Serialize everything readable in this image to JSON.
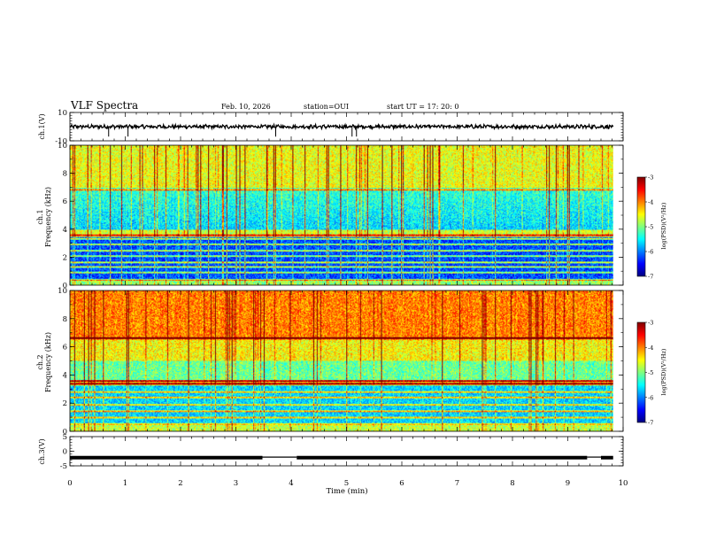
{
  "header": {
    "title": "VLF Spectra",
    "date": "Feb. 10, 2026",
    "station": "station=OUI",
    "start_ut": "start  UT =   17: 20: 0"
  },
  "chart_data": [
    {
      "type": "line",
      "name": "ch1-waveform",
      "ylabel": "ch.1(V)",
      "ylim": [
        -10,
        10
      ],
      "yticks": [
        "10",
        "-10"
      ],
      "xlim": [
        0,
        10
      ],
      "baseline": 0,
      "spikes_min": [
        0.7,
        1.05,
        3.72,
        5.1,
        5.18
      ]
    },
    {
      "type": "heatmap",
      "name": "ch1-spectrogram",
      "ylabel": "Frequency (kHz)",
      "channel_label": "ch.1",
      "ylim": [
        0,
        10
      ],
      "yticks": [
        "0",
        "2",
        "4",
        "6",
        "8",
        "10"
      ],
      "xlim": [
        0,
        10
      ],
      "colorbar": {
        "label": "log(PSD)(V²/Hz)",
        "ticks": [
          "-3",
          "-4",
          "-5",
          "-6",
          "-7"
        ],
        "range": [
          -7,
          -3
        ]
      }
    },
    {
      "type": "heatmap",
      "name": "ch2-spectrogram",
      "ylabel": "Frequency (kHz)",
      "channel_label": "ch.2",
      "ylim": [
        0,
        10
      ],
      "yticks": [
        "0",
        "2",
        "4",
        "6",
        "8",
        "10"
      ],
      "xlim": [
        0,
        10
      ],
      "colorbar": {
        "label": "log(PSD)(V²/Hz)",
        "ticks": [
          "-3",
          "-4",
          "-5",
          "-6",
          "-7"
        ],
        "range": [
          -7,
          -3
        ]
      }
    },
    {
      "type": "line",
      "name": "ch3-waveform",
      "ylabel": "ch.3(V)",
      "ylim": [
        -5,
        5
      ],
      "yticks": [
        "5",
        "0",
        "-5"
      ],
      "xlim": [
        0,
        10
      ],
      "segments": [
        {
          "x0": 0,
          "x1": 3.48,
          "y": -2.2
        },
        {
          "x0": 3.48,
          "x1": 4.1,
          "y": -2.0
        },
        {
          "x0": 4.1,
          "x1": 9.35,
          "y": -2.2
        },
        {
          "x0": 9.35,
          "x1": 9.6,
          "y": -2.0
        },
        {
          "x0": 9.6,
          "x1": 9.82,
          "y": -2.2
        }
      ]
    }
  ],
  "xaxis": {
    "label": "Time (min)",
    "ticks": [
      "0",
      "1",
      "2",
      "3",
      "4",
      "5",
      "6",
      "7",
      "8",
      "9",
      "10"
    ]
  },
  "colors": {
    "jet": [
      "#00007f",
      "#0000ff",
      "#007fff",
      "#00ffff",
      "#7fff7f",
      "#ffff00",
      "#ff7f00",
      "#ff0000",
      "#7f0000"
    ]
  }
}
